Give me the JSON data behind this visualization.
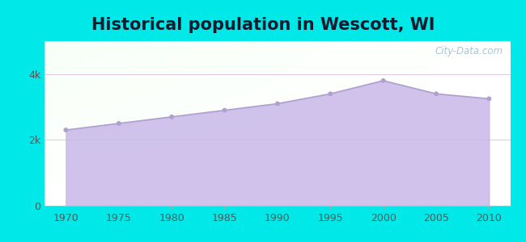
{
  "title": "Historical population in Wescott, WI",
  "years": [
    1970,
    1975,
    1980,
    1985,
    1990,
    1995,
    2000,
    2005,
    2010
  ],
  "population": [
    2300,
    2500,
    2700,
    2900,
    3100,
    3400,
    3800,
    3400,
    3250
  ],
  "fill_color": "#c8b8e8",
  "fill_alpha": 0.85,
  "line_color": "#b0a0d0",
  "marker_color": "#b0a0d0",
  "background_outer": "#00e8e8",
  "ytick_labels": [
    "0",
    "2k",
    "4k"
  ],
  "ytick_values": [
    0,
    2000,
    4000
  ],
  "ylim": [
    0,
    5000
  ],
  "xlim": [
    1968,
    2012
  ],
  "title_fontsize": 15,
  "watermark": "City-Data.com"
}
